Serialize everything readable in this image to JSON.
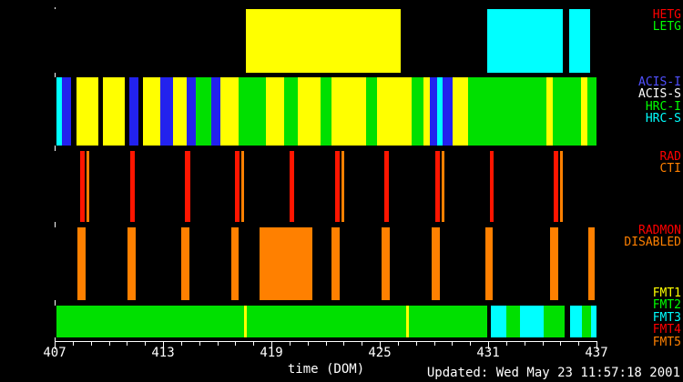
{
  "updated": "Updated: Wed May 23 11:57:18 2001",
  "colors": {
    "yellow": "#ffff00",
    "cyan": "#00ffff",
    "green": "#00e000",
    "blue": "#2222ee",
    "red": "#ff1500",
    "orange": "#ff8000",
    "background": "#000000",
    "axis": "#ffffff"
  },
  "chart_data": {
    "type": "timeline-bands",
    "title": "",
    "xlabel": "time (DOM)",
    "xlim": [
      407,
      437
    ],
    "major_ticks": [
      407,
      413,
      419,
      425,
      431,
      437
    ],
    "minor_tick_step": 1,
    "bands": [
      {
        "name": "gratings",
        "labels": [
          {
            "text": "HETG",
            "color": "#ff0000"
          },
          {
            "text": "LETG",
            "color": "#00ff00"
          }
        ],
        "segments": [
          [
            417.6,
            426.15,
            "yellow"
          ],
          [
            430.95,
            435.13,
            "cyan"
          ],
          [
            435.49,
            436.65,
            "cyan"
          ]
        ]
      },
      {
        "name": "instruments",
        "labels": [
          {
            "text": "ACIS-I",
            "color": "#5050ff"
          },
          {
            "text": "ACIS-S",
            "color": "#ffffff"
          },
          {
            "text": "HRC-I",
            "color": "#00ff00"
          },
          {
            "text": "HRC-S",
            "color": "#00ffff"
          }
        ],
        "segments": [
          [
            407.1,
            407.4,
            "cyan"
          ],
          [
            407.4,
            407.91,
            "blue"
          ],
          [
            408.21,
            409.42,
            "yellow"
          ],
          [
            409.67,
            410.88,
            "yellow"
          ],
          [
            411.13,
            411.64,
            "blue"
          ],
          [
            411.89,
            412.85,
            "yellow"
          ],
          [
            412.85,
            413.55,
            "blue"
          ],
          [
            413.55,
            414.31,
            "yellow"
          ],
          [
            414.31,
            414.81,
            "blue"
          ],
          [
            414.81,
            415.67,
            "green"
          ],
          [
            415.67,
            416.18,
            "blue"
          ],
          [
            416.18,
            417.19,
            "yellow"
          ],
          [
            417.19,
            418.7,
            "green"
          ],
          [
            418.7,
            419.71,
            "yellow"
          ],
          [
            419.71,
            420.46,
            "green"
          ],
          [
            420.46,
            421.72,
            "yellow"
          ],
          [
            421.72,
            422.33,
            "green"
          ],
          [
            422.33,
            424.24,
            "yellow"
          ],
          [
            424.24,
            424.85,
            "green"
          ],
          [
            424.85,
            426.76,
            "yellow"
          ],
          [
            426.76,
            427.42,
            "green"
          ],
          [
            427.42,
            427.77,
            "yellow"
          ],
          [
            427.77,
            428.18,
            "blue"
          ],
          [
            428.18,
            428.48,
            "cyan"
          ],
          [
            428.48,
            429.03,
            "blue"
          ],
          [
            429.03,
            429.89,
            "yellow"
          ],
          [
            429.89,
            434.23,
            "green"
          ],
          [
            434.23,
            434.58,
            "yellow"
          ],
          [
            434.58,
            436.14,
            "green"
          ],
          [
            436.14,
            436.5,
            "yellow"
          ],
          [
            436.5,
            437.0,
            "green"
          ]
        ]
      },
      {
        "name": "rad-cti",
        "labels": [
          {
            "text": "RAD",
            "color": "#ff0000"
          },
          {
            "text": "CTI",
            "color": "#ff8000"
          }
        ],
        "segments": [
          [
            408.41,
            408.66,
            "red"
          ],
          [
            408.76,
            408.92,
            "orange"
          ],
          [
            411.19,
            411.44,
            "red"
          ],
          [
            414.21,
            414.51,
            "red"
          ],
          [
            416.98,
            417.24,
            "red"
          ],
          [
            417.34,
            417.49,
            "orange"
          ],
          [
            420.01,
            420.26,
            "red"
          ],
          [
            422.53,
            422.78,
            "red"
          ],
          [
            422.88,
            423.03,
            "orange"
          ],
          [
            425.25,
            425.51,
            "red"
          ],
          [
            428.08,
            428.33,
            "red"
          ],
          [
            428.43,
            428.58,
            "orange"
          ],
          [
            431.1,
            431.3,
            "red"
          ],
          [
            434.63,
            434.89,
            "red"
          ],
          [
            434.99,
            435.14,
            "orange"
          ]
        ]
      },
      {
        "name": "radmon",
        "labels": [
          {
            "text": "RADMON",
            "color": "#ff0000"
          },
          {
            "text": "DISABLED",
            "color": "#ff8000"
          }
        ],
        "segments": [
          [
            408.26,
            408.71,
            "orange"
          ],
          [
            411.03,
            411.49,
            "orange"
          ],
          [
            414.01,
            414.46,
            "orange"
          ],
          [
            416.78,
            417.19,
            "orange"
          ],
          [
            418.34,
            421.27,
            "orange"
          ],
          [
            422.33,
            422.78,
            "orange"
          ],
          [
            425.1,
            425.56,
            "orange"
          ],
          [
            427.88,
            428.33,
            "orange"
          ],
          [
            430.85,
            431.25,
            "orange"
          ],
          [
            434.43,
            434.89,
            "orange"
          ],
          [
            436.55,
            436.9,
            "orange"
          ]
        ]
      },
      {
        "name": "fmt",
        "labels": [
          {
            "text": "FMT1",
            "color": "#ffff00"
          },
          {
            "text": "FMT2",
            "color": "#00ff00"
          },
          {
            "text": "FMT3",
            "color": "#00ffff"
          },
          {
            "text": "FMT4",
            "color": "#ff0000"
          },
          {
            "text": "FMT5",
            "color": "#ff8000"
          }
        ],
        "segments": [
          [
            407.1,
            417.49,
            "green"
          ],
          [
            417.49,
            417.64,
            "yellow"
          ],
          [
            417.64,
            426.46,
            "green"
          ],
          [
            426.46,
            426.61,
            "yellow"
          ],
          [
            426.61,
            430.95,
            "green"
          ],
          [
            431.15,
            432.01,
            "cyan"
          ],
          [
            432.01,
            432.77,
            "green"
          ],
          [
            432.77,
            434.08,
            "cyan"
          ],
          [
            434.08,
            435.24,
            "green"
          ],
          [
            435.54,
            436.19,
            "cyan"
          ],
          [
            436.19,
            436.7,
            "green"
          ],
          [
            436.7,
            437.0,
            "cyan"
          ]
        ]
      }
    ]
  }
}
